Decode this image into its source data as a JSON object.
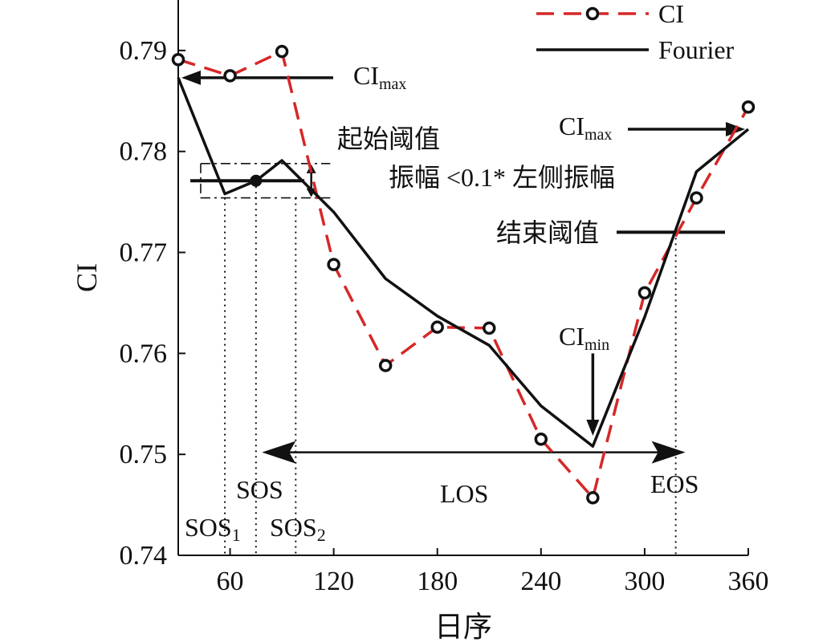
{
  "chart_data": {
    "type": "line",
    "title": "",
    "xlabel": "日序",
    "ylabel": "CI",
    "xlim": [
      30,
      360
    ],
    "ylim": [
      0.74,
      0.795
    ],
    "xticks": [
      60,
      120,
      180,
      240,
      300,
      360
    ],
    "xtick_labels": [
      "60",
      "120",
      "180",
      "240",
      "300",
      "360"
    ],
    "yticks": [
      0.74,
      0.75,
      0.76,
      0.77,
      0.78,
      0.79
    ],
    "ytick_labels": [
      "0.74",
      "0.75",
      "0.76",
      "0.77",
      "0.78",
      "0.79"
    ],
    "legend": "top-right",
    "series": [
      {
        "name": "CI",
        "style": "dashed-circle",
        "color": "#d62728",
        "x": [
          30,
          60,
          90,
          120,
          150,
          180,
          210,
          240,
          270,
          300,
          330,
          360
        ],
        "y": [
          0.7891,
          0.7875,
          0.7899,
          0.7688,
          0.7588,
          0.7626,
          0.7625,
          0.7515,
          0.7457,
          0.766,
          0.7754,
          0.7844
        ]
      },
      {
        "name": "Fourier",
        "style": "solid",
        "color": "#111111",
        "x": [
          30,
          57,
          75,
          90,
          120,
          150,
          180,
          210,
          240,
          270,
          300,
          330,
          360
        ],
        "y": [
          0.7873,
          0.7758,
          0.7771,
          0.7791,
          0.774,
          0.7674,
          0.7637,
          0.7608,
          0.7548,
          0.7508,
          0.7636,
          0.778,
          0.7822
        ]
      }
    ],
    "sos_point": {
      "x": 75,
      "y": 0.7771
    },
    "annotations": {
      "ci_max_left": {
        "main": "CI",
        "sub": "max"
      },
      "ci_max_right": {
        "main": "CI",
        "sub": "max"
      },
      "ci_min": {
        "main": "CI",
        "sub": "min"
      },
      "start_threshold": "起始阈值",
      "amplitude_note": "振幅 <0.1* 左侧振幅",
      "end_threshold": "结束阈值",
      "sos": "SOS",
      "sos1": {
        "main": "SOS",
        "sub": "1"
      },
      "sos2": {
        "main": "SOS",
        "sub": "2"
      },
      "los": "LOS",
      "eos": "EOS"
    },
    "markers": {
      "sos_x": 75,
      "sos1_x": 57,
      "sos2_x": 98,
      "eos_x": 318,
      "start_threshold_y": 0.7771,
      "end_threshold_y": 0.772,
      "band_top_y": 0.7788,
      "band_bottom_y": 0.7754,
      "los_y": 0.7502,
      "los_x_start": 98,
      "los_x_end": 318
    }
  }
}
